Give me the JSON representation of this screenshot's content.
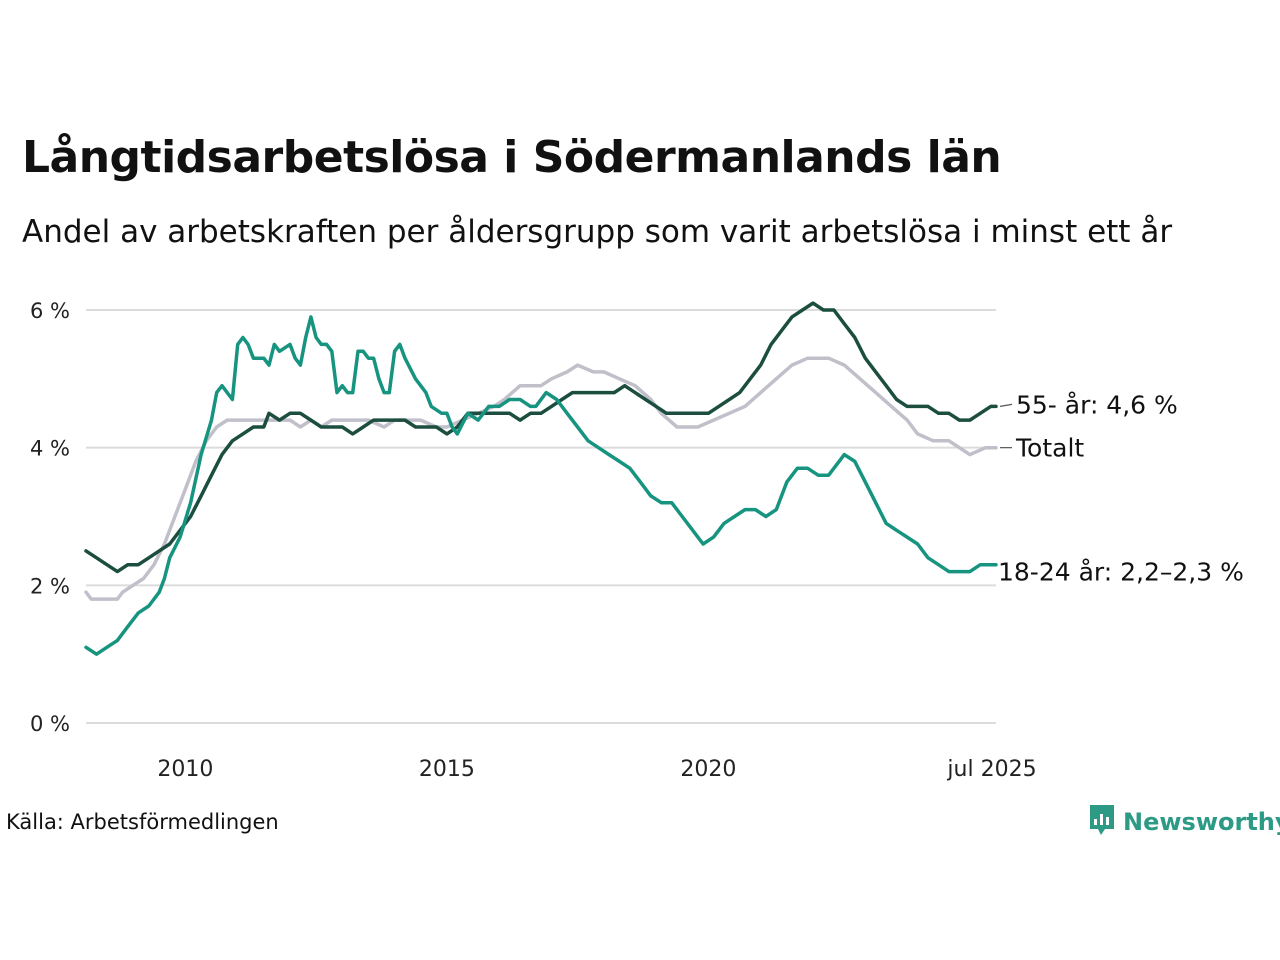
{
  "title": "Långtidsarbetslösa i Södermanlands län",
  "subtitle": "Andel av arbetskraften per åldersgrupp som varit arbetslösa i minst ett år",
  "source": "Källa: Arbetsförmedlingen",
  "logo": {
    "text": "Newsworthy",
    "icon": "newsworthy-bar-chart-icon",
    "color": "#2d9a86"
  },
  "chart_data": {
    "type": "line",
    "x_unit": "year",
    "xlim": [
      2008.1,
      2025.5
    ],
    "ylim": [
      0,
      6
    ],
    "y_ticks": [
      {
        "value": 0,
        "label": "0 %"
      },
      {
        "value": 2,
        "label": "2 %"
      },
      {
        "value": 4,
        "label": "4 %"
      },
      {
        "value": 6,
        "label": "6 %"
      }
    ],
    "x_ticks": [
      {
        "value": 2010,
        "label": "2010"
      },
      {
        "value": 2015,
        "label": "2015"
      },
      {
        "value": 2020,
        "label": "2020"
      },
      {
        "value": 2025.5,
        "label": "jul 2025"
      }
    ],
    "grid": "horizontal",
    "legend": "direct labels at right end of lines",
    "series": [
      {
        "name": "Totalt",
        "label": "Totalt",
        "color": "#c1bfc9",
        "points": [
          [
            2008.1,
            1.9
          ],
          [
            2008.2,
            1.8
          ],
          [
            2008.5,
            1.8
          ],
          [
            2008.7,
            1.8
          ],
          [
            2008.8,
            1.9
          ],
          [
            2009.0,
            2.0
          ],
          [
            2009.2,
            2.1
          ],
          [
            2009.4,
            2.3
          ],
          [
            2009.6,
            2.6
          ],
          [
            2009.8,
            3.0
          ],
          [
            2010.0,
            3.4
          ],
          [
            2010.2,
            3.8
          ],
          [
            2010.4,
            4.1
          ],
          [
            2010.6,
            4.3
          ],
          [
            2010.8,
            4.4
          ],
          [
            2011.0,
            4.4
          ],
          [
            2011.5,
            4.4
          ],
          [
            2012.0,
            4.4
          ],
          [
            2012.2,
            4.3
          ],
          [
            2012.4,
            4.4
          ],
          [
            2012.6,
            4.3
          ],
          [
            2012.8,
            4.4
          ],
          [
            2013.0,
            4.4
          ],
          [
            2013.5,
            4.4
          ],
          [
            2013.8,
            4.3
          ],
          [
            2014.0,
            4.4
          ],
          [
            2014.5,
            4.4
          ],
          [
            2014.8,
            4.3
          ],
          [
            2015.0,
            4.3
          ],
          [
            2015.3,
            4.4
          ],
          [
            2015.6,
            4.5
          ],
          [
            2015.9,
            4.6
          ],
          [
            2016.1,
            4.7
          ],
          [
            2016.4,
            4.9
          ],
          [
            2016.8,
            4.9
          ],
          [
            2017.0,
            5.0
          ],
          [
            2017.3,
            5.1
          ],
          [
            2017.5,
            5.2
          ],
          [
            2017.8,
            5.1
          ],
          [
            2018.0,
            5.1
          ],
          [
            2018.3,
            5.0
          ],
          [
            2018.6,
            4.9
          ],
          [
            2018.9,
            4.7
          ],
          [
            2019.1,
            4.5
          ],
          [
            2019.4,
            4.3
          ],
          [
            2019.8,
            4.3
          ],
          [
            2020.1,
            4.4
          ],
          [
            2020.4,
            4.5
          ],
          [
            2020.7,
            4.6
          ],
          [
            2021.0,
            4.8
          ],
          [
            2021.3,
            5.0
          ],
          [
            2021.6,
            5.2
          ],
          [
            2021.9,
            5.3
          ],
          [
            2022.3,
            5.3
          ],
          [
            2022.6,
            5.2
          ],
          [
            2022.9,
            5.0
          ],
          [
            2023.2,
            4.8
          ],
          [
            2023.5,
            4.6
          ],
          [
            2023.8,
            4.4
          ],
          [
            2024.0,
            4.2
          ],
          [
            2024.3,
            4.1
          ],
          [
            2024.6,
            4.1
          ],
          [
            2024.8,
            4.0
          ],
          [
            2025.0,
            3.9
          ],
          [
            2025.3,
            4.0
          ],
          [
            2025.5,
            4.0
          ]
        ]
      },
      {
        "name": "55- år",
        "label": "55- år: 4,6 %",
        "color": "#1c4e3f",
        "points": [
          [
            2008.1,
            2.5
          ],
          [
            2008.3,
            2.4
          ],
          [
            2008.5,
            2.3
          ],
          [
            2008.7,
            2.2
          ],
          [
            2008.9,
            2.3
          ],
          [
            2009.1,
            2.3
          ],
          [
            2009.3,
            2.4
          ],
          [
            2009.5,
            2.5
          ],
          [
            2009.7,
            2.6
          ],
          [
            2009.9,
            2.8
          ],
          [
            2010.1,
            3.0
          ],
          [
            2010.3,
            3.3
          ],
          [
            2010.5,
            3.6
          ],
          [
            2010.7,
            3.9
          ],
          [
            2010.9,
            4.1
          ],
          [
            2011.1,
            4.2
          ],
          [
            2011.3,
            4.3
          ],
          [
            2011.5,
            4.3
          ],
          [
            2011.6,
            4.5
          ],
          [
            2011.8,
            4.4
          ],
          [
            2012.0,
            4.5
          ],
          [
            2012.2,
            4.5
          ],
          [
            2012.4,
            4.4
          ],
          [
            2012.6,
            4.3
          ],
          [
            2012.8,
            4.3
          ],
          [
            2013.0,
            4.3
          ],
          [
            2013.2,
            4.2
          ],
          [
            2013.4,
            4.3
          ],
          [
            2013.6,
            4.4
          ],
          [
            2013.8,
            4.4
          ],
          [
            2014.0,
            4.4
          ],
          [
            2014.2,
            4.4
          ],
          [
            2014.4,
            4.3
          ],
          [
            2014.6,
            4.3
          ],
          [
            2014.8,
            4.3
          ],
          [
            2015.0,
            4.2
          ],
          [
            2015.2,
            4.3
          ],
          [
            2015.4,
            4.5
          ],
          [
            2015.6,
            4.5
          ],
          [
            2015.8,
            4.5
          ],
          [
            2016.0,
            4.5
          ],
          [
            2016.2,
            4.5
          ],
          [
            2016.4,
            4.4
          ],
          [
            2016.6,
            4.5
          ],
          [
            2016.8,
            4.5
          ],
          [
            2017.0,
            4.6
          ],
          [
            2017.2,
            4.7
          ],
          [
            2017.4,
            4.8
          ],
          [
            2017.6,
            4.8
          ],
          [
            2017.8,
            4.8
          ],
          [
            2018.0,
            4.8
          ],
          [
            2018.2,
            4.8
          ],
          [
            2018.4,
            4.9
          ],
          [
            2018.6,
            4.8
          ],
          [
            2018.8,
            4.7
          ],
          [
            2019.0,
            4.6
          ],
          [
            2019.2,
            4.5
          ],
          [
            2019.4,
            4.5
          ],
          [
            2019.6,
            4.5
          ],
          [
            2019.8,
            4.5
          ],
          [
            2020.0,
            4.5
          ],
          [
            2020.2,
            4.6
          ],
          [
            2020.4,
            4.7
          ],
          [
            2020.6,
            4.8
          ],
          [
            2020.8,
            5.0
          ],
          [
            2021.0,
            5.2
          ],
          [
            2021.2,
            5.5
          ],
          [
            2021.4,
            5.7
          ],
          [
            2021.6,
            5.9
          ],
          [
            2021.8,
            6.0
          ],
          [
            2022.0,
            6.1
          ],
          [
            2022.2,
            6.0
          ],
          [
            2022.4,
            6.0
          ],
          [
            2022.6,
            5.8
          ],
          [
            2022.8,
            5.6
          ],
          [
            2023.0,
            5.3
          ],
          [
            2023.2,
            5.1
          ],
          [
            2023.4,
            4.9
          ],
          [
            2023.6,
            4.7
          ],
          [
            2023.8,
            4.6
          ],
          [
            2024.0,
            4.6
          ],
          [
            2024.2,
            4.6
          ],
          [
            2024.4,
            4.5
          ],
          [
            2024.6,
            4.5
          ],
          [
            2024.8,
            4.4
          ],
          [
            2025.0,
            4.4
          ],
          [
            2025.2,
            4.5
          ],
          [
            2025.4,
            4.6
          ],
          [
            2025.5,
            4.6
          ]
        ]
      },
      {
        "name": "18-24 år",
        "label": "18-24 år: 2,2–2,3 %",
        "color": "#169480",
        "points": [
          [
            2008.1,
            1.1
          ],
          [
            2008.3,
            1.0
          ],
          [
            2008.5,
            1.1
          ],
          [
            2008.7,
            1.2
          ],
          [
            2008.9,
            1.4
          ],
          [
            2009.1,
            1.6
          ],
          [
            2009.3,
            1.7
          ],
          [
            2009.5,
            1.9
          ],
          [
            2009.6,
            2.1
          ],
          [
            2009.7,
            2.4
          ],
          [
            2009.9,
            2.7
          ],
          [
            2010.1,
            3.2
          ],
          [
            2010.3,
            3.9
          ],
          [
            2010.5,
            4.4
          ],
          [
            2010.6,
            4.8
          ],
          [
            2010.7,
            4.9
          ],
          [
            2010.9,
            4.7
          ],
          [
            2011.0,
            5.5
          ],
          [
            2011.1,
            5.6
          ],
          [
            2011.2,
            5.5
          ],
          [
            2011.3,
            5.3
          ],
          [
            2011.5,
            5.3
          ],
          [
            2011.6,
            5.2
          ],
          [
            2011.7,
            5.5
          ],
          [
            2011.8,
            5.4
          ],
          [
            2012.0,
            5.5
          ],
          [
            2012.1,
            5.3
          ],
          [
            2012.2,
            5.2
          ],
          [
            2012.3,
            5.6
          ],
          [
            2012.4,
            5.9
          ],
          [
            2012.5,
            5.6
          ],
          [
            2012.6,
            5.5
          ],
          [
            2012.7,
            5.5
          ],
          [
            2012.8,
            5.4
          ],
          [
            2012.9,
            4.8
          ],
          [
            2013.0,
            4.9
          ],
          [
            2013.1,
            4.8
          ],
          [
            2013.2,
            4.8
          ],
          [
            2013.3,
            5.4
          ],
          [
            2013.4,
            5.4
          ],
          [
            2013.5,
            5.3
          ],
          [
            2013.6,
            5.3
          ],
          [
            2013.7,
            5.0
          ],
          [
            2013.8,
            4.8
          ],
          [
            2013.9,
            4.8
          ],
          [
            2014.0,
            5.4
          ],
          [
            2014.1,
            5.5
          ],
          [
            2014.2,
            5.3
          ],
          [
            2014.4,
            5.0
          ],
          [
            2014.6,
            4.8
          ],
          [
            2014.7,
            4.6
          ],
          [
            2014.9,
            4.5
          ],
          [
            2015.0,
            4.5
          ],
          [
            2015.1,
            4.3
          ],
          [
            2015.2,
            4.2
          ],
          [
            2015.4,
            4.5
          ],
          [
            2015.6,
            4.4
          ],
          [
            2015.8,
            4.6
          ],
          [
            2016.0,
            4.6
          ],
          [
            2016.2,
            4.7
          ],
          [
            2016.4,
            4.7
          ],
          [
            2016.6,
            4.6
          ],
          [
            2016.7,
            4.6
          ],
          [
            2016.9,
            4.8
          ],
          [
            2017.1,
            4.7
          ],
          [
            2017.3,
            4.5
          ],
          [
            2017.5,
            4.3
          ],
          [
            2017.7,
            4.1
          ],
          [
            2017.9,
            4.0
          ],
          [
            2018.1,
            3.9
          ],
          [
            2018.3,
            3.8
          ],
          [
            2018.5,
            3.7
          ],
          [
            2018.7,
            3.5
          ],
          [
            2018.9,
            3.3
          ],
          [
            2019.1,
            3.2
          ],
          [
            2019.3,
            3.2
          ],
          [
            2019.5,
            3.0
          ],
          [
            2019.7,
            2.8
          ],
          [
            2019.9,
            2.6
          ],
          [
            2020.1,
            2.7
          ],
          [
            2020.3,
            2.9
          ],
          [
            2020.5,
            3.0
          ],
          [
            2020.7,
            3.1
          ],
          [
            2020.9,
            3.1
          ],
          [
            2021.1,
            3.0
          ],
          [
            2021.3,
            3.1
          ],
          [
            2021.5,
            3.5
          ],
          [
            2021.7,
            3.7
          ],
          [
            2021.9,
            3.7
          ],
          [
            2022.1,
            3.6
          ],
          [
            2022.3,
            3.6
          ],
          [
            2022.5,
            3.8
          ],
          [
            2022.6,
            3.9
          ],
          [
            2022.8,
            3.8
          ],
          [
            2023.0,
            3.5
          ],
          [
            2023.2,
            3.2
          ],
          [
            2023.4,
            2.9
          ],
          [
            2023.6,
            2.8
          ],
          [
            2023.8,
            2.7
          ],
          [
            2024.0,
            2.6
          ],
          [
            2024.2,
            2.4
          ],
          [
            2024.4,
            2.3
          ],
          [
            2024.6,
            2.2
          ],
          [
            2024.8,
            2.2
          ],
          [
            2025.0,
            2.2
          ],
          [
            2025.2,
            2.3
          ],
          [
            2025.4,
            2.3
          ],
          [
            2025.5,
            2.3
          ]
        ]
      }
    ]
  }
}
